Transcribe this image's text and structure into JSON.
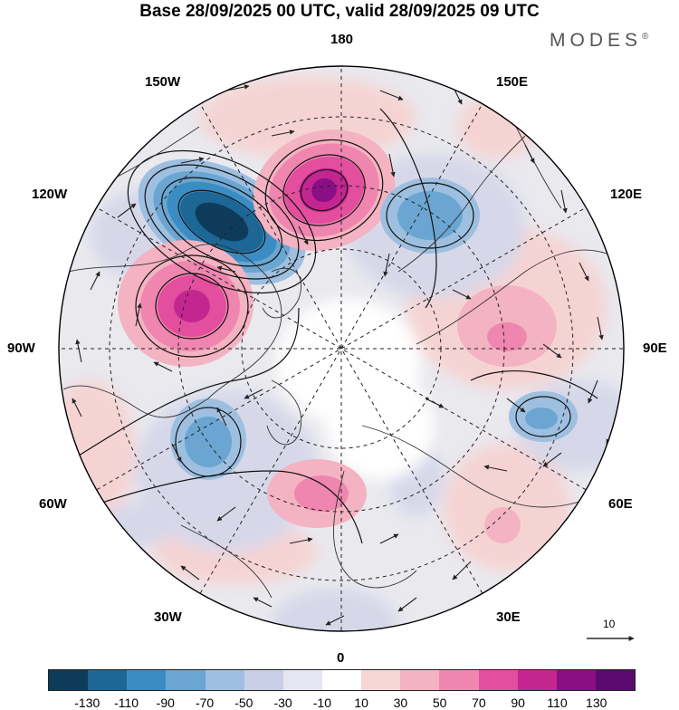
{
  "title": "Base 28/09/2025 00 UTC, valid 28/09/2025 09 UTC",
  "logo": {
    "text": "MODES",
    "mark": "®"
  },
  "longitude_labels": {
    "top": "180",
    "bottom": "0",
    "left": "90W",
    "right": "90E",
    "nw_upper": "150W",
    "nw_lower": "120W",
    "sw_upper": "60W",
    "sw_lower": "30W",
    "ne_upper": "150E",
    "ne_lower": "120E",
    "se_upper": "60E",
    "se_lower": "30E"
  },
  "vector_scale": {
    "label": "10"
  },
  "colorbar": {
    "colors": [
      "#0f3b5a",
      "#1c6796",
      "#3b8cc2",
      "#6aa6d1",
      "#9ebfe0",
      "#c8cfe6",
      "#e6e6f2",
      "#ffffff",
      "#f8d6d6",
      "#f4b3c2",
      "#ef86b0",
      "#e34e9e",
      "#c42690",
      "#8b0f84",
      "#5a0a6e"
    ],
    "ticks": [
      "-130",
      "-110",
      "-90",
      "-70",
      "-50",
      "-30",
      "-10",
      "10",
      "30",
      "50",
      "70",
      "90",
      "110",
      "130"
    ]
  },
  "map_features": {
    "anomalies": [
      {
        "name": "blue-low-alaska",
        "lon": -150,
        "lat": 52,
        "value": -130
      },
      {
        "name": "pink-high-bering",
        "lon": 178,
        "lat": 56,
        "value": 110
      },
      {
        "name": "blue-low-kamchatka",
        "lon": 138,
        "lat": 60,
        "value": -70
      },
      {
        "name": "pink-high-canada",
        "lon": -108,
        "lat": 58,
        "value": 100
      },
      {
        "name": "blue-low-atlantic",
        "lon": -45,
        "lat": 50,
        "value": -60
      },
      {
        "name": "pink-high-europe",
        "lon": -8,
        "lat": 60,
        "value": 60
      },
      {
        "name": "pink-high-siberia",
        "lon": 90,
        "lat": 58,
        "value": 50
      },
      {
        "name": "blue-low-central-asia",
        "lon": 70,
        "lat": 42,
        "value": -55
      }
    ]
  }
}
